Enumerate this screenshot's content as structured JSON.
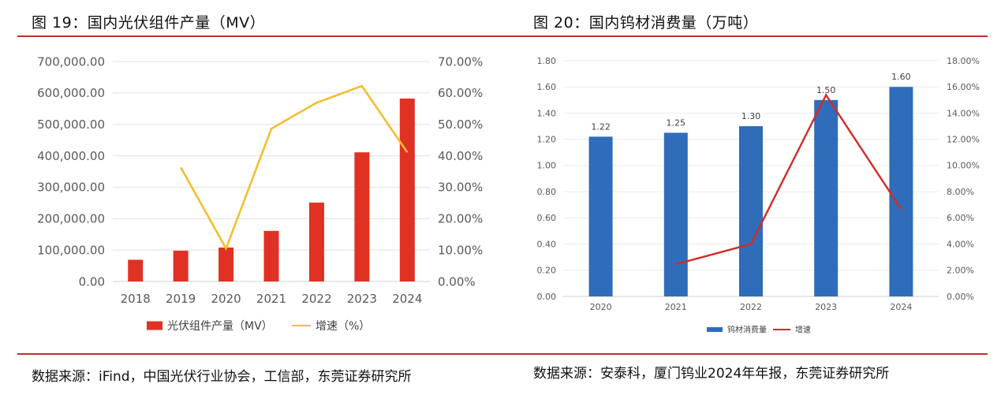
{
  "figures": [
    {
      "title": "图 19：国内光伏组件产量（MV）",
      "source": "数据来源：iFind，中国光伏行业协会，工信部，东莞证券研究所"
    },
    {
      "title": "图 20：国内钨材消费量（万吨）",
      "source": "数据来源：安泰科，厦门钨业2024年年报，东莞证券研究所"
    }
  ],
  "colors": {
    "rule": "#c0302b",
    "left_bar": "#e03124",
    "left_line": "#f2bf2f",
    "right_bar": "#2f6dba",
    "right_line": "#d52a26",
    "grid": "#e0e0e0",
    "tick": "#595959"
  },
  "chart_data": [
    {
      "type": "bar",
      "title": "图 19：国内光伏组件产量（MV）",
      "categories": [
        "2018",
        "2019",
        "2020",
        "2021",
        "2022",
        "2023",
        "2024"
      ],
      "series": [
        {
          "name": "光伏组件产量（MV）",
          "type": "bar",
          "axis": "left",
          "values": [
            69000,
            98000,
            108000,
            161000,
            251000,
            411000,
            582000
          ]
        },
        {
          "name": "增速（%）",
          "type": "line",
          "axis": "right",
          "values": [
            null,
            36.3,
            10.5,
            48.6,
            56.9,
            62.2,
            41.1
          ]
        }
      ],
      "ylim": [
        0,
        700000
      ],
      "y2lim": [
        0,
        70
      ],
      "yticks": [
        "0.00",
        "100,000.00",
        "200,000.00",
        "300,000.00",
        "400,000.00",
        "500,000.00",
        "600,000.00",
        "700,000.00"
      ],
      "y2ticks": [
        "0.00%",
        "10.00%",
        "20.00%",
        "30.00%",
        "40.00%",
        "50.00%",
        "60.00%",
        "70.00%"
      ],
      "xlabel": "",
      "ylabel": "",
      "grid": true,
      "legend": {
        "placement": "bottom",
        "entries": [
          "光伏组件产量（MV）",
          "增速（%）"
        ]
      }
    },
    {
      "type": "bar",
      "title": "图 20：国内钨材消费量（万吨）",
      "categories": [
        "2020",
        "2021",
        "2022",
        "2023",
        "2024"
      ],
      "series": [
        {
          "name": "钨材消费量",
          "type": "bar",
          "axis": "left",
          "values": [
            1.22,
            1.25,
            1.3,
            1.5,
            1.6
          ],
          "labels": [
            "1.22",
            "1.25",
            "1.30",
            "1.50",
            "1.60"
          ]
        },
        {
          "name": "增速",
          "type": "line",
          "axis": "right",
          "values": [
            null,
            2.46,
            4.0,
            15.38,
            6.67
          ]
        }
      ],
      "ylim": [
        0,
        1.8
      ],
      "y2lim": [
        0,
        18
      ],
      "yticks": [
        "0.00",
        "0.20",
        "0.40",
        "0.60",
        "0.80",
        "1.00",
        "1.20",
        "1.40",
        "1.60",
        "1.80"
      ],
      "y2ticks": [
        "0.00%",
        "2.00%",
        "4.00%",
        "6.00%",
        "8.00%",
        "10.00%",
        "12.00%",
        "14.00%",
        "16.00%",
        "18.00%"
      ],
      "xlabel": "",
      "ylabel": "",
      "grid": true,
      "legend": {
        "placement": "bottom",
        "entries": [
          "钨材消费量",
          "增速"
        ]
      }
    }
  ]
}
